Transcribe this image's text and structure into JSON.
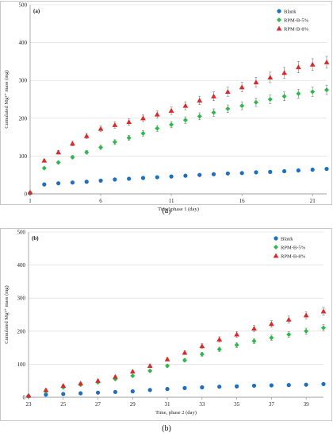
{
  "chart_data": [
    {
      "type": "scatter",
      "panel_label": "(a)",
      "caption": "(a)",
      "xlabel": "Time,  phase 1 (day)",
      "ylabel": "Cumulated  Mg²⁺ mass (mg)",
      "xlim": [
        1,
        22
      ],
      "ylim": [
        0,
        500
      ],
      "xticks": [
        "1",
        "6",
        "11",
        "16",
        "21"
      ],
      "yticks": [
        "0",
        "100",
        "200",
        "300",
        "400",
        "500"
      ],
      "legend_position": "top-right",
      "x": [
        1,
        2,
        3,
        4,
        5,
        6,
        7,
        8,
        9,
        10,
        11,
        12,
        13,
        14,
        15,
        16,
        17,
        18,
        19,
        20,
        21,
        22
      ],
      "series": [
        {
          "name": "Blank",
          "marker": "circle",
          "color": "#1f6fbf",
          "values": [
            2,
            25,
            28,
            30,
            32,
            35,
            38,
            40,
            42,
            44,
            46,
            48,
            50,
            52,
            54,
            55,
            57,
            58,
            60,
            62,
            64,
            66
          ]
        },
        {
          "name": "RPM-B-5%",
          "marker": "diamond",
          "color": "#2db84d",
          "values": [
            3,
            68,
            83,
            97,
            110,
            123,
            137,
            148,
            160,
            173,
            183,
            195,
            205,
            215,
            225,
            233,
            242,
            250,
            258,
            265,
            270,
            275
          ]
        },
        {
          "name": "RPM-B-8%",
          "marker": "triangle",
          "color": "#d92b2b",
          "values": [
            4,
            88,
            110,
            133,
            153,
            172,
            182,
            190,
            200,
            210,
            220,
            233,
            247,
            258,
            270,
            282,
            295,
            308,
            320,
            335,
            342,
            348
          ]
        }
      ],
      "error_bars": true
    },
    {
      "type": "scatter",
      "panel_label": "(b)",
      "caption": "(b)",
      "xlabel": "Time,  phase 2 (day)",
      "ylabel": "Cumulated  Mg²⁺ mass (mg)",
      "xlim": [
        23,
        40
      ],
      "ylim": [
        0,
        500
      ],
      "xticks": [
        "23",
        "25",
        "27",
        "29",
        "31",
        "33",
        "35",
        "37",
        "39"
      ],
      "yticks": [
        "0",
        "100",
        "200",
        "300",
        "400",
        "500"
      ],
      "legend_position": "top-right",
      "x": [
        23,
        24,
        25,
        26,
        27,
        28,
        29,
        30,
        31,
        32,
        33,
        34,
        35,
        36,
        37,
        38,
        39,
        40
      ],
      "series": [
        {
          "name": "Blank",
          "marker": "circle",
          "color": "#1f6fbf",
          "values": [
            3,
            8,
            10,
            12,
            14,
            16,
            18,
            22,
            25,
            28,
            30,
            32,
            33,
            35,
            36,
            37,
            38,
            40
          ]
        },
        {
          "name": "RPM-B-5%",
          "marker": "diamond",
          "color": "#2db84d",
          "values": [
            4,
            18,
            30,
            38,
            45,
            55,
            65,
            80,
            95,
            112,
            130,
            145,
            158,
            170,
            180,
            190,
            200,
            210
          ]
        },
        {
          "name": "RPM-B-8%",
          "marker": "triangle",
          "color": "#d92b2b",
          "values": [
            5,
            22,
            35,
            42,
            50,
            62,
            78,
            95,
            115,
            135,
            155,
            175,
            190,
            208,
            222,
            235,
            248,
            260
          ]
        }
      ],
      "error_bars": true
    }
  ]
}
